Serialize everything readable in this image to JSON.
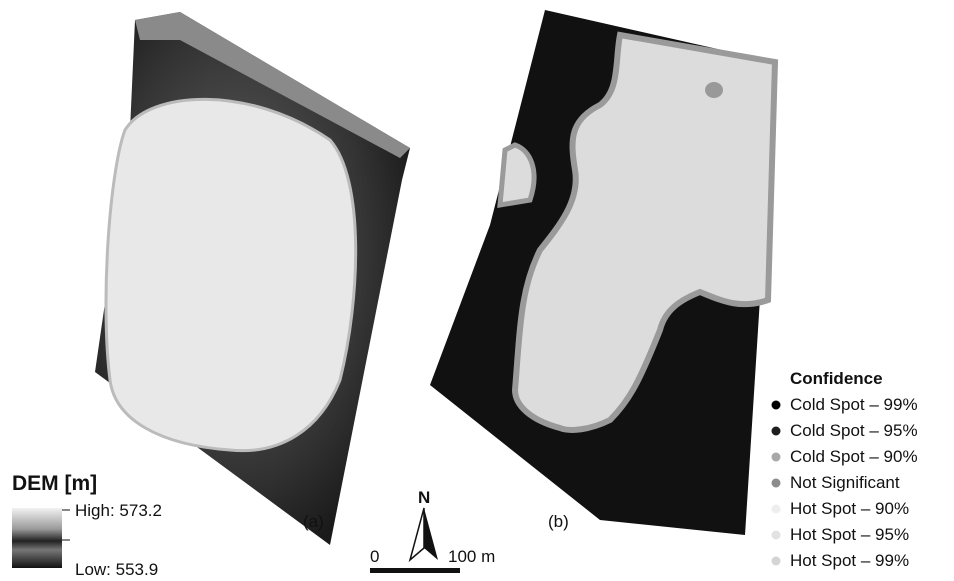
{
  "panel_a": {
    "label": "(a)",
    "legend": {
      "title": "DEM [m]",
      "high": "High: 573.2",
      "low": "Low: 553.9"
    }
  },
  "panel_b": {
    "label": "(b)",
    "legend": {
      "title": "Confidence",
      "items": [
        "Cold Spot – 99%",
        "Cold Spot – 95%",
        "Cold Spot – 90%",
        "Not Significant",
        "Hot Spot – 90%",
        "Hot Spot – 95%",
        "Hot Spot – 99%"
      ]
    }
  },
  "scale_bar": {
    "north": "N",
    "start": "0",
    "end": "100 m"
  }
}
